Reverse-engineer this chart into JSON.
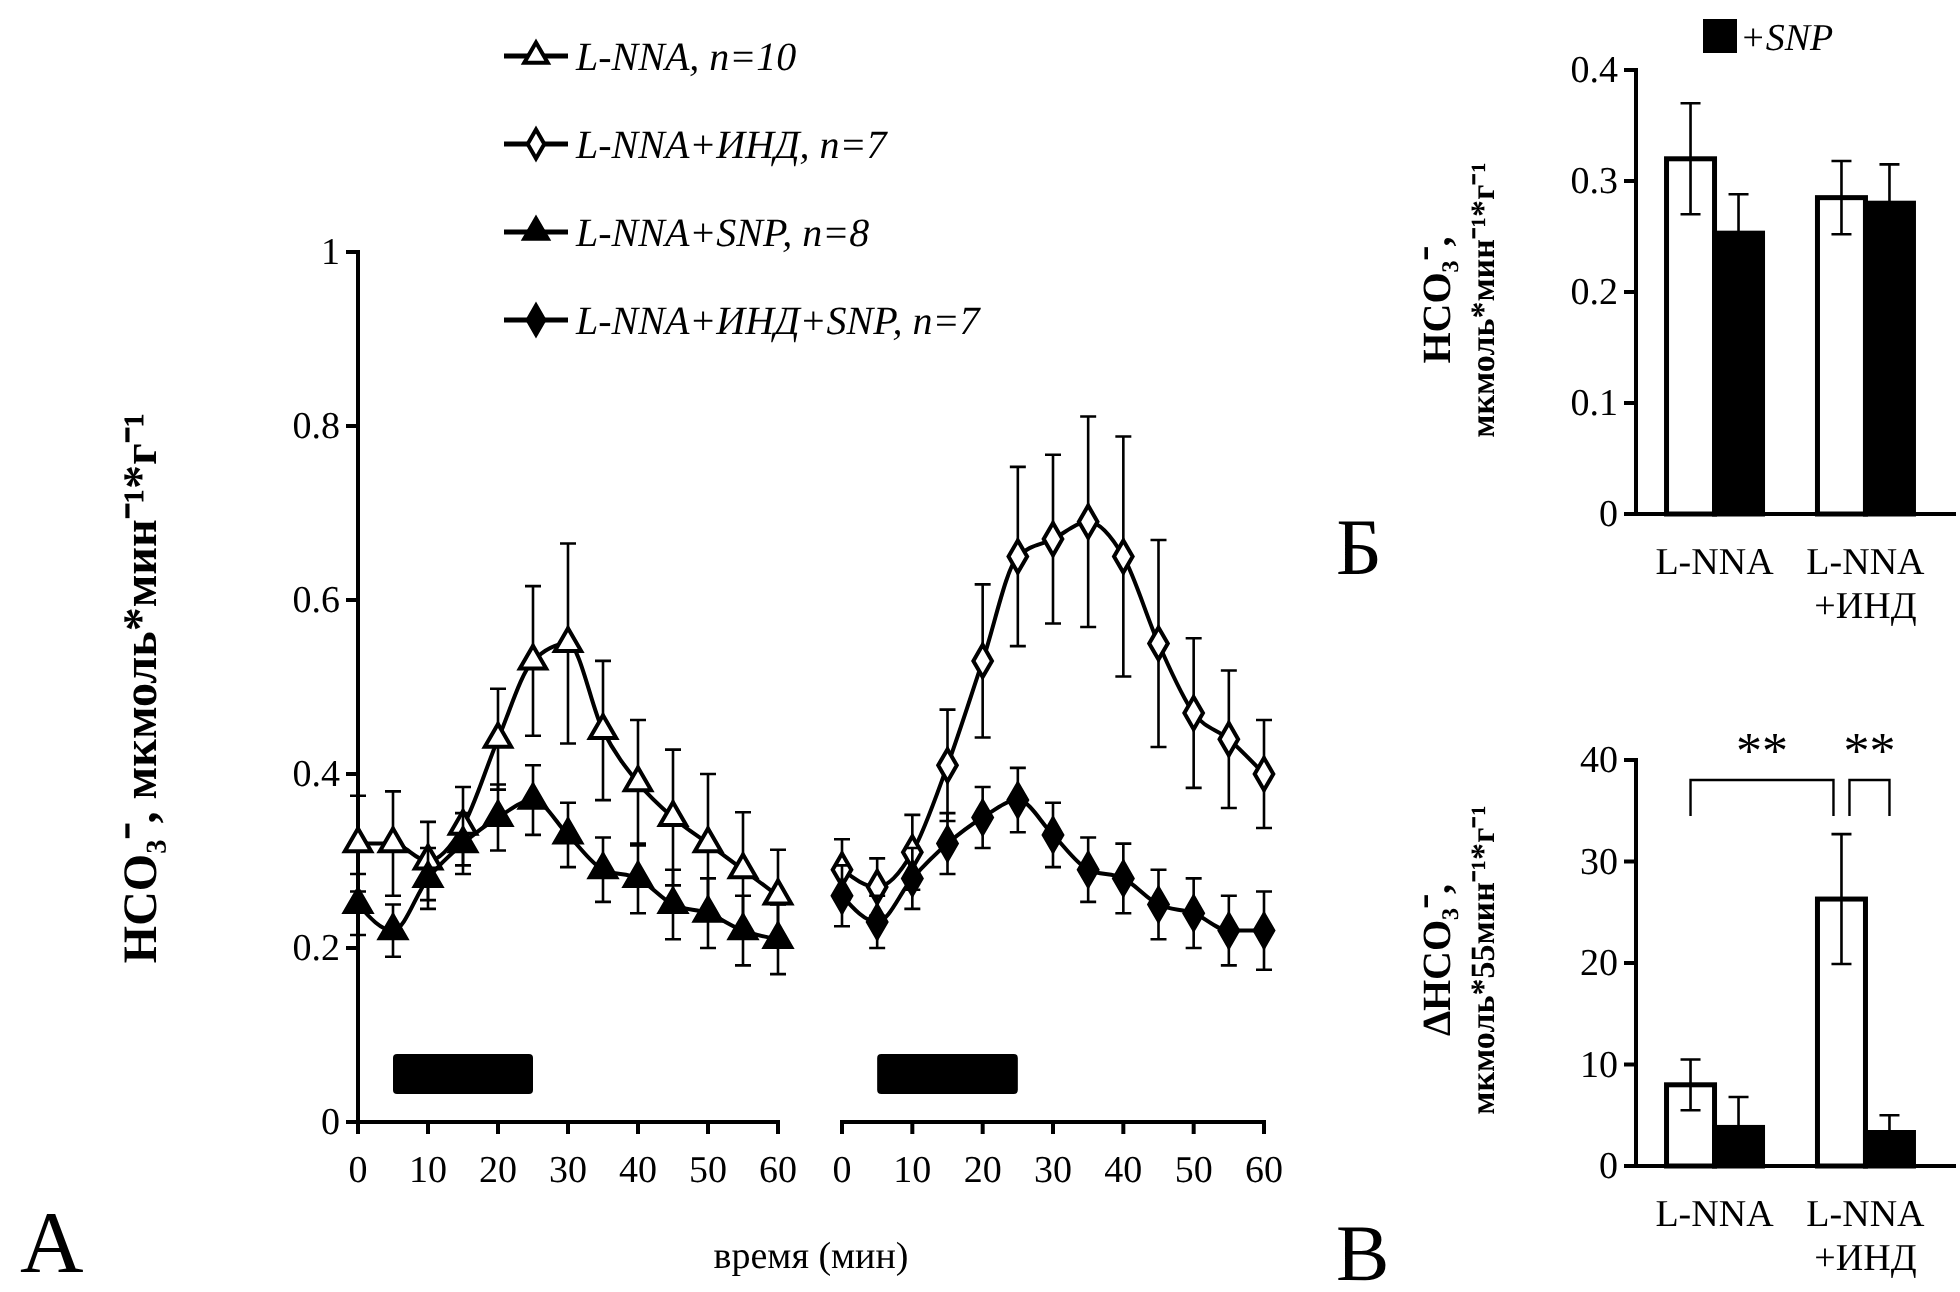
{
  "chart_data": [
    {
      "type": "line",
      "ylabel": "HCO₃⁻, мкмоль*мин⁻¹*г⁻¹",
      "xlabel": "время (мин)",
      "annotations": [
        "А"
      ],
      "legend": "top",
      "line_style": "solid",
      "x": [
        0,
        5,
        10,
        15,
        20,
        25,
        30,
        35,
        40,
        45,
        50,
        55,
        60
      ],
      "xlim": [
        0,
        60
      ],
      "xticks": [
        0,
        10,
        20,
        30,
        40,
        50,
        60
      ],
      "ylim": [
        0,
        1
      ],
      "yticks": [
        0,
        0.2,
        0.4,
        0.6,
        0.8,
        1
      ],
      "bands": [
        {
          "axis": "x",
          "from": 5,
          "to": 25,
          "color": "#000000"
        }
      ],
      "series": [
        {
          "name": "L-NNA, n=10",
          "color": "#ffffff",
          "marker": "triangle",
          "values": [
            0.32,
            0.32,
            0.3,
            0.34,
            0.44,
            0.53,
            0.55,
            0.45,
            0.39,
            0.35,
            0.32,
            0.29,
            0.26
          ],
          "errors": [
            0.055,
            0.06,
            0.045,
            0.045,
            0.058,
            0.086,
            0.115,
            0.08,
            0.072,
            0.078,
            0.08,
            0.066,
            0.053
          ]
        },
        {
          "name": "L-NNA+SNP, n=8",
          "color": "#000000",
          "marker": "triangle",
          "values": [
            0.25,
            0.22,
            0.28,
            0.32,
            0.35,
            0.37,
            0.33,
            0.29,
            0.28,
            0.25,
            0.24,
            0.22,
            0.21
          ],
          "errors": [
            0.035,
            0.03,
            0.035,
            0.035,
            0.038,
            0.04,
            0.037,
            0.037,
            0.04,
            0.04,
            0.04,
            0.04,
            0.04
          ]
        }
      ]
    },
    {
      "type": "line",
      "legend": "top",
      "line_style": "solid",
      "tick_labels": "x",
      "x": [
        0,
        5,
        10,
        15,
        20,
        25,
        30,
        35,
        40,
        45,
        50,
        55,
        60
      ],
      "xlim": [
        0,
        60
      ],
      "xticks": [
        0,
        10,
        20,
        30,
        40,
        50,
        60
      ],
      "ylim": [
        0,
        1
      ],
      "bands": [
        {
          "axis": "x",
          "from": 5,
          "to": 25,
          "color": "#000000"
        }
      ],
      "series": [
        {
          "name": "L-NNA+ИНД, n=7",
          "color": "#ffffff",
          "marker": "diamond",
          "values": [
            0.29,
            0.27,
            0.31,
            0.41,
            0.53,
            0.65,
            0.67,
            0.69,
            0.65,
            0.55,
            0.47,
            0.44,
            0.4
          ],
          "errors": [
            0.035,
            0.033,
            0.043,
            0.064,
            0.088,
            0.103,
            0.097,
            0.121,
            0.138,
            0.119,
            0.086,
            0.079,
            0.062
          ]
        },
        {
          "name": "L-NNA+ИНД+SNP, n=7",
          "color": "#000000",
          "marker": "diamond",
          "values": [
            0.26,
            0.23,
            0.28,
            0.32,
            0.35,
            0.37,
            0.33,
            0.29,
            0.28,
            0.25,
            0.24,
            0.22,
            0.22
          ],
          "errors": [
            0.035,
            0.03,
            0.035,
            0.035,
            0.035,
            0.037,
            0.037,
            0.037,
            0.04,
            0.04,
            0.04,
            0.04,
            0.045
          ]
        }
      ]
    },
    {
      "type": "bar",
      "ylabel": "HCO₃⁻, мкмоль*мин⁻¹*г⁻¹",
      "annotations": [
        "Б"
      ],
      "legend": "top",
      "categories": [
        "L-NNA",
        "L-NNA +ИНД"
      ],
      "ylim": [
        0,
        0.4
      ],
      "yticks": [
        0,
        0.1,
        0.2,
        0.3,
        0.4
      ],
      "series": [
        {
          "color": "#ffffff",
          "values": [
            0.32,
            0.285
          ],
          "errors": [
            0.05,
            0.033
          ]
        },
        {
          "name": "+SNP",
          "color": "#000000",
          "values": [
            0.253,
            0.28
          ],
          "errors": [
            0.035,
            0.035
          ]
        }
      ]
    },
    {
      "type": "bar",
      "ylabel": "ΔHCO₃⁻, мкмоль*55мин⁻¹*г⁻¹",
      "annotations": [
        "В",
        "**",
        "**"
      ],
      "categories": [
        "L-NNA",
        "L-NNA +ИНД"
      ],
      "ylim": [
        0,
        40
      ],
      "yticks": [
        0,
        10,
        20,
        30,
        40
      ],
      "series": [
        {
          "color": "#ffffff",
          "values": [
            8,
            26.3
          ],
          "errors": [
            2.5,
            6.4
          ]
        },
        {
          "color": "#000000",
          "values": [
            3.8,
            3.3
          ],
          "errors": [
            3,
            1.7
          ]
        }
      ]
    }
  ]
}
